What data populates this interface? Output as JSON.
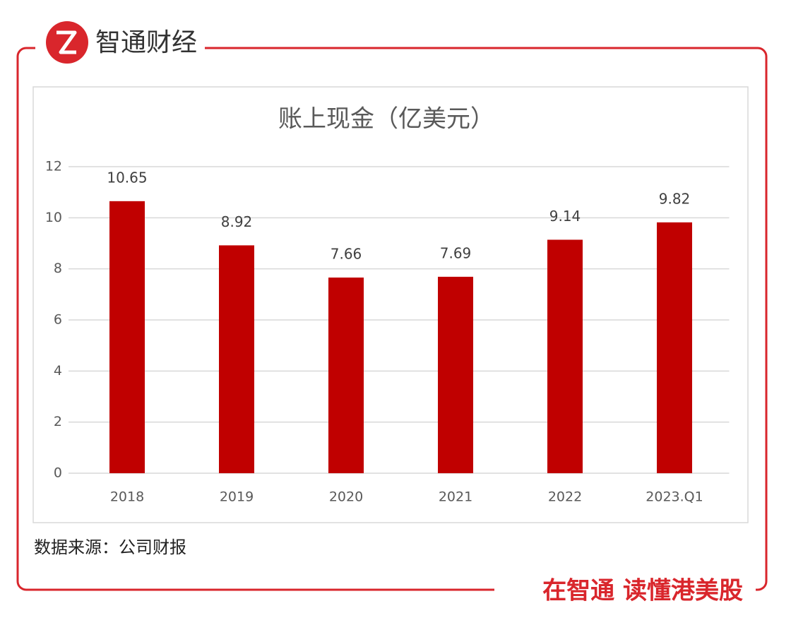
{
  "brand": "智通财经",
  "source": "数据来源：公司财报",
  "slogan": "在智通 读懂港美股",
  "chart_data": {
    "type": "bar",
    "title": "账上现金（亿美元）",
    "categories": [
      "2018",
      "2019",
      "2020",
      "2021",
      "2022",
      "2023.Q1"
    ],
    "values": [
      10.65,
      8.92,
      7.66,
      7.69,
      9.14,
      9.82
    ],
    "color": "#c00000",
    "ylim": [
      0,
      12
    ],
    "yticks": [
      0,
      2,
      4,
      6,
      8,
      10,
      12
    ],
    "grid": true
  }
}
